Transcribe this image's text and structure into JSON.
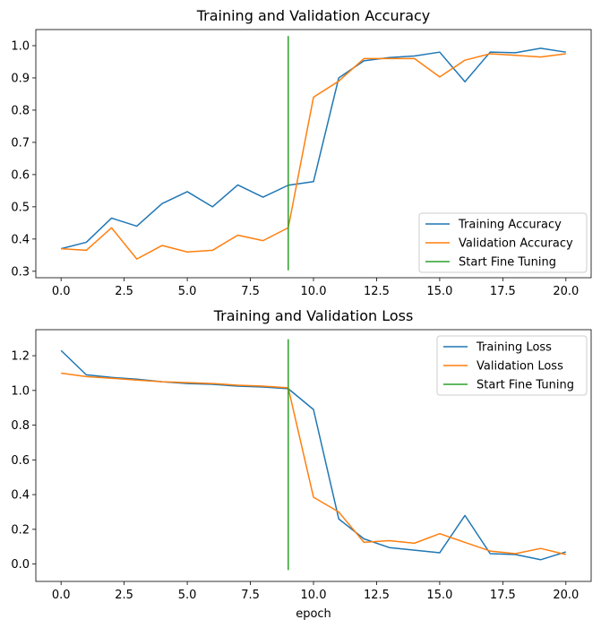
{
  "chart_data": [
    {
      "type": "line",
      "title": "Training and Validation Accuracy",
      "xlabel": "",
      "ylabel": "",
      "xlim": [
        -1,
        21
      ],
      "ylim": [
        0.28,
        1.05
      ],
      "xticks": [
        0,
        2.5,
        5,
        7.5,
        10,
        12.5,
        15,
        17.5,
        20
      ],
      "xtick_labels": [
        "0.0",
        "2.5",
        "5.0",
        "7.5",
        "10.0",
        "12.5",
        "15.0",
        "17.5",
        "20.0"
      ],
      "yticks": [
        0.3,
        0.4,
        0.5,
        0.6,
        0.7,
        0.8,
        0.9,
        1.0
      ],
      "ytick_labels": [
        "0.3",
        "0.4",
        "0.5",
        "0.6",
        "0.7",
        "0.8",
        "0.9",
        "1.0"
      ],
      "legend_position": "lower-right",
      "grid": false,
      "x": [
        0,
        1,
        2,
        3,
        4,
        5,
        6,
        7,
        8,
        9,
        10,
        11,
        12,
        13,
        14,
        15,
        16,
        17,
        18,
        19,
        20
      ],
      "series": [
        {
          "name": "Training Accuracy",
          "color": "#1f77b4",
          "values": [
            0.37,
            0.39,
            0.465,
            0.44,
            0.51,
            0.547,
            0.5,
            0.568,
            0.53,
            0.567,
            0.578,
            0.9,
            0.953,
            0.963,
            0.968,
            0.98,
            0.888,
            0.98,
            0.978,
            0.992,
            0.98
          ]
        },
        {
          "name": "Validation Accuracy",
          "color": "#ff7f0e",
          "values": [
            0.37,
            0.365,
            0.435,
            0.338,
            0.38,
            0.36,
            0.365,
            0.412,
            0.395,
            0.435,
            0.84,
            0.89,
            0.96,
            0.96,
            0.96,
            0.903,
            0.955,
            0.975,
            0.97,
            0.965,
            0.975
          ]
        },
        {
          "name": "Start Fine Tuning",
          "color": "#2ca02c",
          "x": [
            9,
            9
          ],
          "values": [
            0.303,
            1.03
          ]
        }
      ]
    },
    {
      "type": "line",
      "title": "Training and Validation Loss",
      "xlabel": "epoch",
      "ylabel": "",
      "xlim": [
        -1,
        21
      ],
      "ylim": [
        -0.1,
        1.35
      ],
      "xticks": [
        0,
        2.5,
        5,
        7.5,
        10,
        12.5,
        15,
        17.5,
        20
      ],
      "xtick_labels": [
        "0.0",
        "2.5",
        "5.0",
        "7.5",
        "10.0",
        "12.5",
        "15.0",
        "17.5",
        "20.0"
      ],
      "yticks": [
        0,
        0.2,
        0.4,
        0.6,
        0.8,
        1.0,
        1.2
      ],
      "ytick_labels": [
        "0.0",
        "0.2",
        "0.4",
        "0.6",
        "0.8",
        "1.0",
        "1.2"
      ],
      "legend_position": "upper-right",
      "grid": false,
      "x": [
        0,
        1,
        2,
        3,
        4,
        5,
        6,
        7,
        8,
        9,
        10,
        11,
        12,
        13,
        14,
        15,
        16,
        17,
        18,
        19,
        20
      ],
      "series": [
        {
          "name": "Training Loss",
          "color": "#1f77b4",
          "values": [
            1.23,
            1.09,
            1.075,
            1.065,
            1.05,
            1.04,
            1.035,
            1.025,
            1.02,
            1.01,
            0.89,
            0.26,
            0.145,
            0.095,
            0.08,
            0.065,
            0.28,
            0.06,
            0.055,
            0.025,
            0.07
          ]
        },
        {
          "name": "Validation Loss",
          "color": "#ff7f0e",
          "values": [
            1.1,
            1.08,
            1.07,
            1.06,
            1.05,
            1.045,
            1.04,
            1.03,
            1.025,
            1.015,
            0.385,
            0.3,
            0.125,
            0.135,
            0.12,
            0.175,
            0.125,
            0.075,
            0.06,
            0.09,
            0.055
          ]
        },
        {
          "name": "Start Fine Tuning",
          "color": "#2ca02c",
          "x": [
            9,
            9
          ],
          "values": [
            -0.035,
            1.295
          ]
        }
      ]
    }
  ]
}
